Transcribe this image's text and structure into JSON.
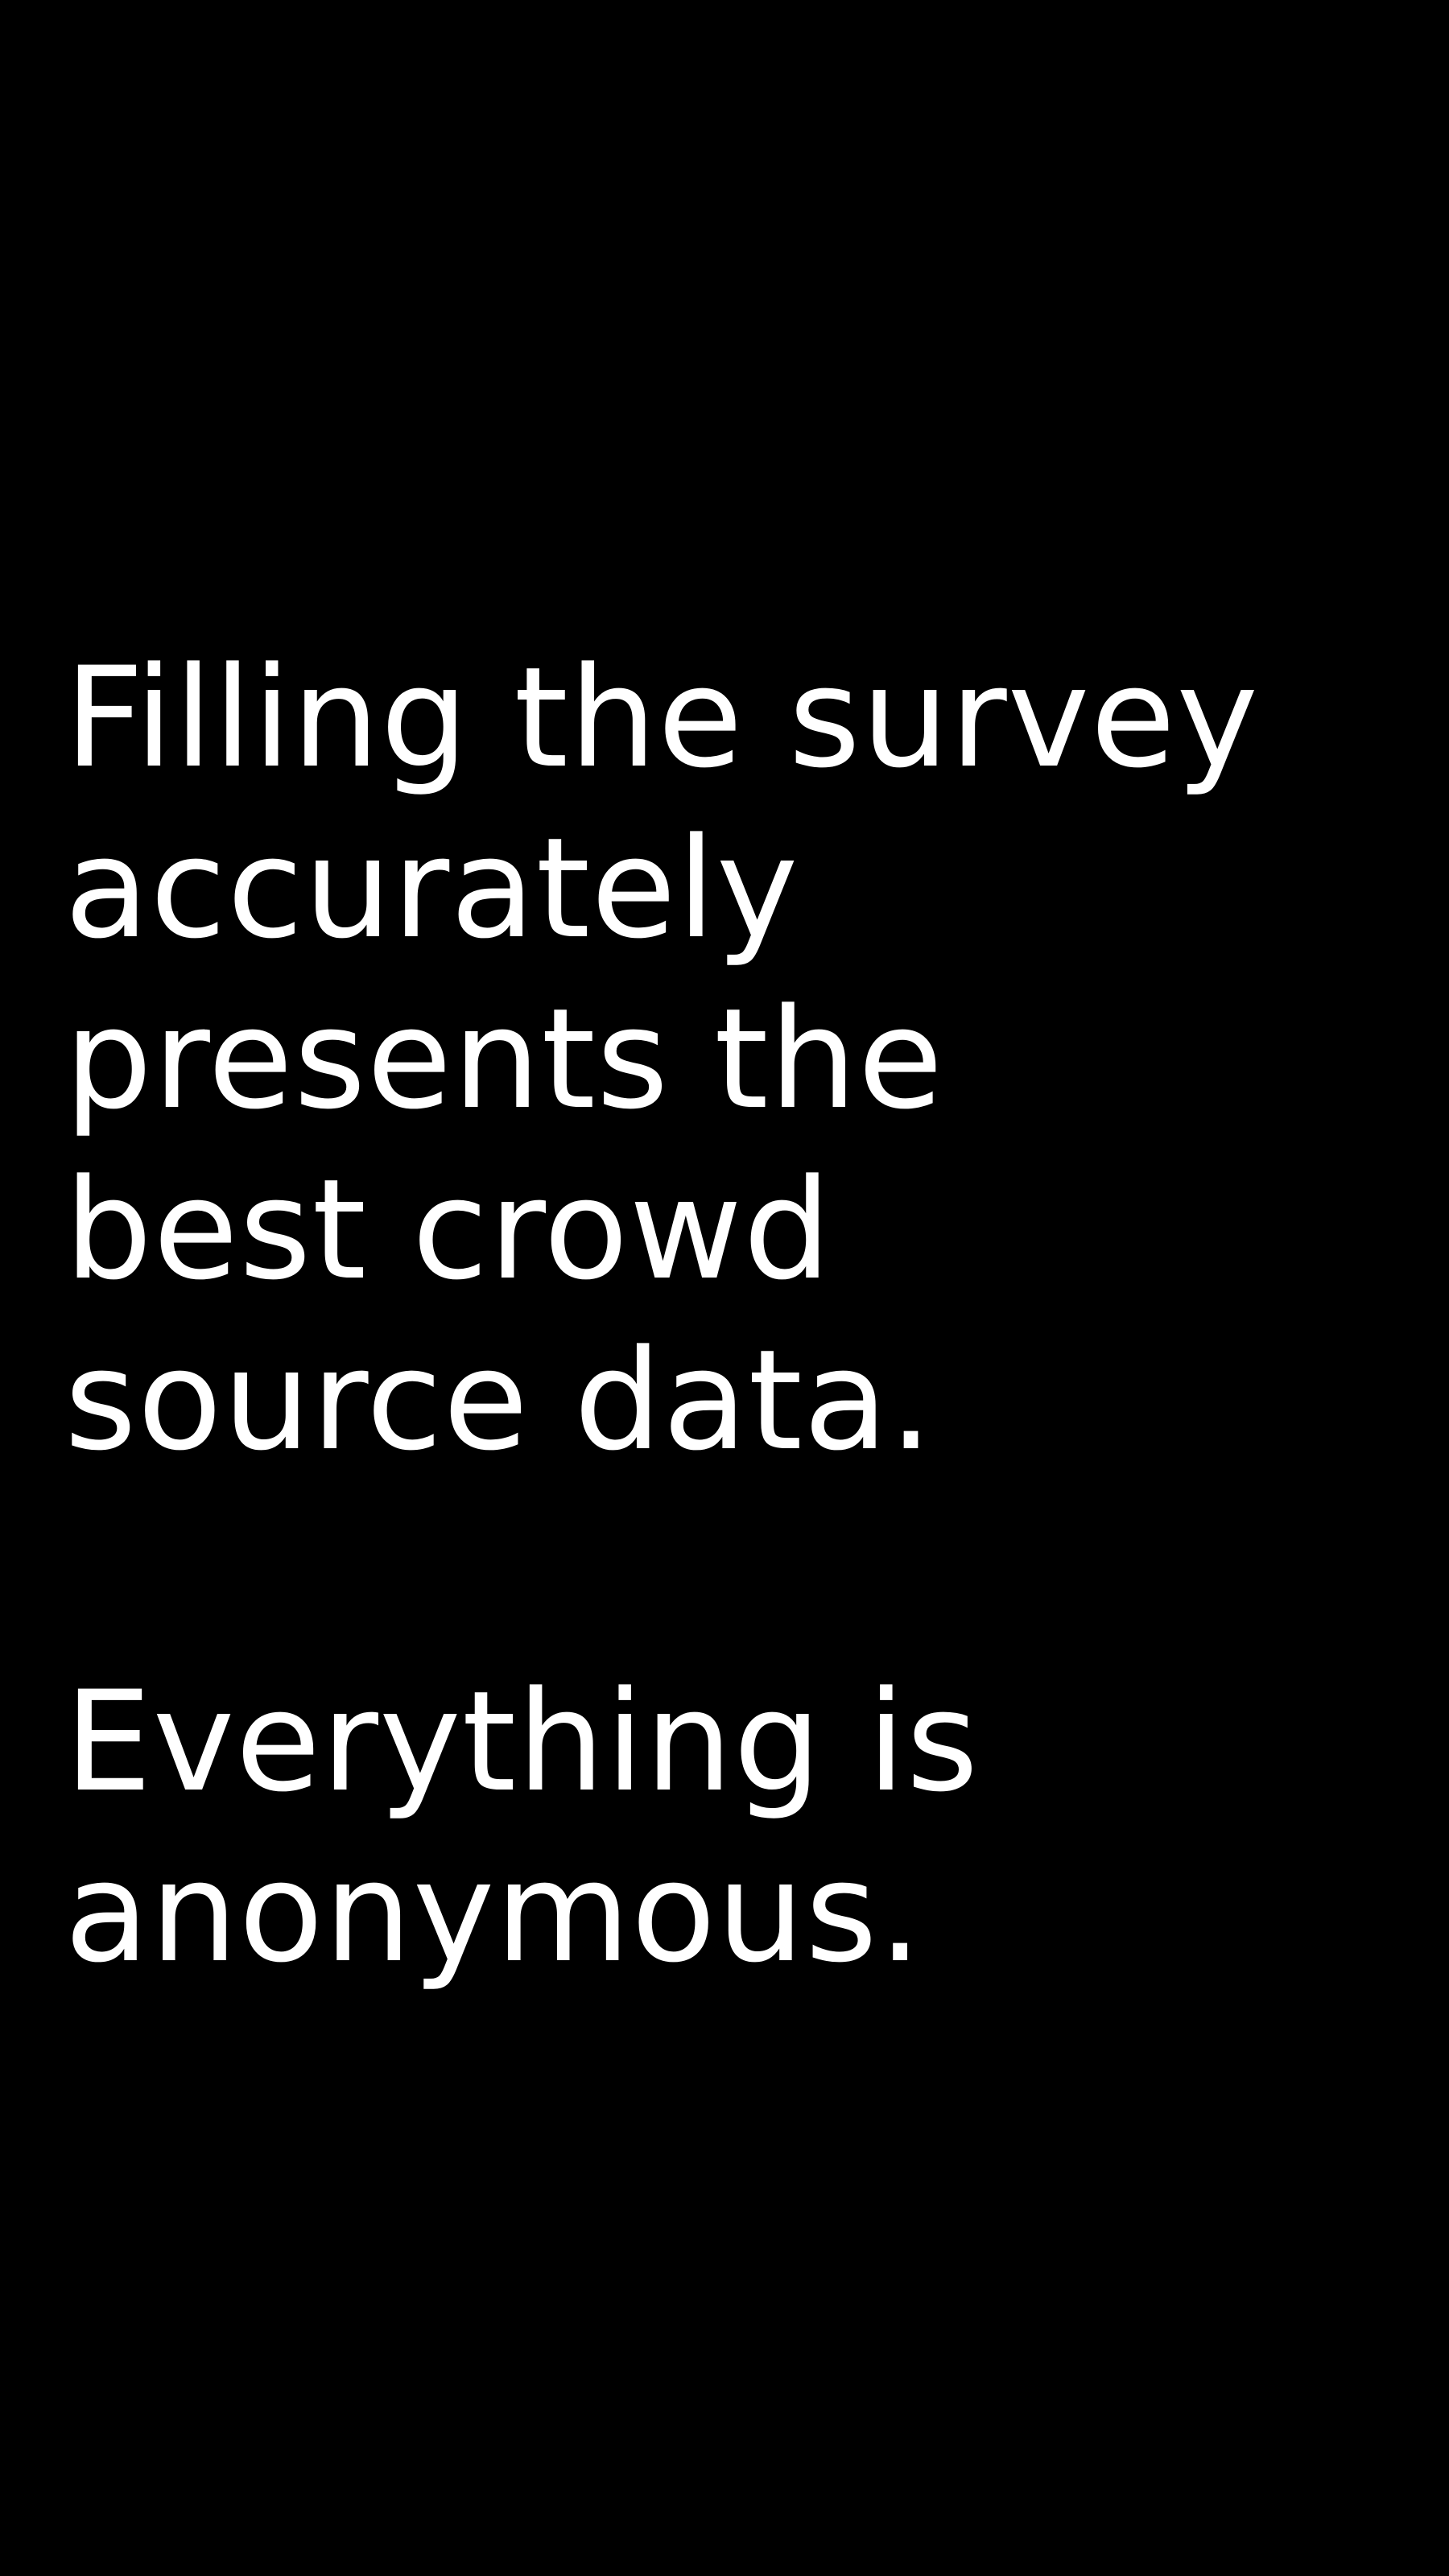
{
  "paragraph_1": {
    "lines": [
      "Filling the survey",
      "accurately",
      "presents the",
      "best crowd",
      "source data."
    ]
  },
  "paragraph_2": {
    "lines": [
      "Everything is",
      "anonymous."
    ]
  },
  "colors": {
    "background": "#000000",
    "text": "#ffffff"
  }
}
